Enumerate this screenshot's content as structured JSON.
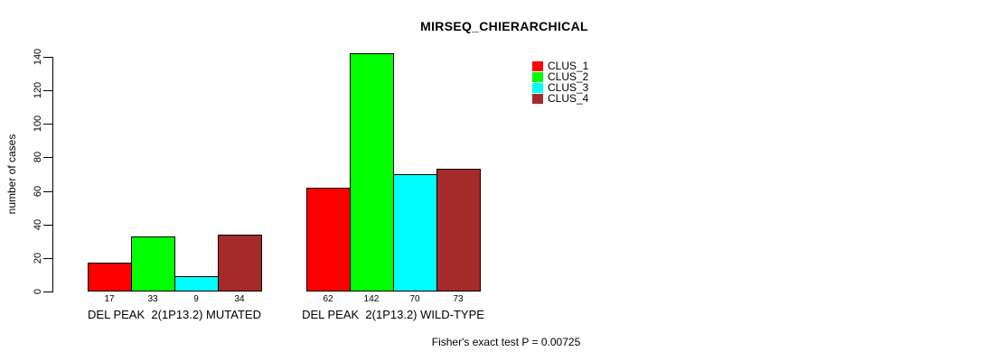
{
  "title": "MIRSEQ_CHIERARCHICAL",
  "chart_data": {
    "type": "bar",
    "title": "MIRSEQ_CHIERARCHICAL",
    "xlabel": "",
    "ylabel": "number of cases",
    "ylim": [
      0,
      140
    ],
    "yticks": [
      0,
      20,
      40,
      60,
      80,
      100,
      120,
      140
    ],
    "grid": false,
    "legend_position": "top-right",
    "categories": [
      "DEL PEAK  2(1P13.2) MUTATED",
      "DEL PEAK  2(1P13.2) WILD-TYPE"
    ],
    "series": [
      {
        "name": "CLUS_1",
        "color": "#FF0000",
        "values": [
          17,
          62
        ]
      },
      {
        "name": "CLUS_2",
        "color": "#00FF00",
        "values": [
          33,
          142
        ]
      },
      {
        "name": "CLUS_3",
        "color": "#00FFFF",
        "values": [
          9,
          70
        ]
      },
      {
        "name": "CLUS_4",
        "color": "#A52A2A",
        "values": [
          34,
          73
        ]
      }
    ],
    "bar_labels": [
      [
        17,
        33,
        9,
        34
      ],
      [
        62,
        142,
        70,
        73
      ]
    ],
    "annotation": "Fisher's exact test P = 0.00725"
  }
}
